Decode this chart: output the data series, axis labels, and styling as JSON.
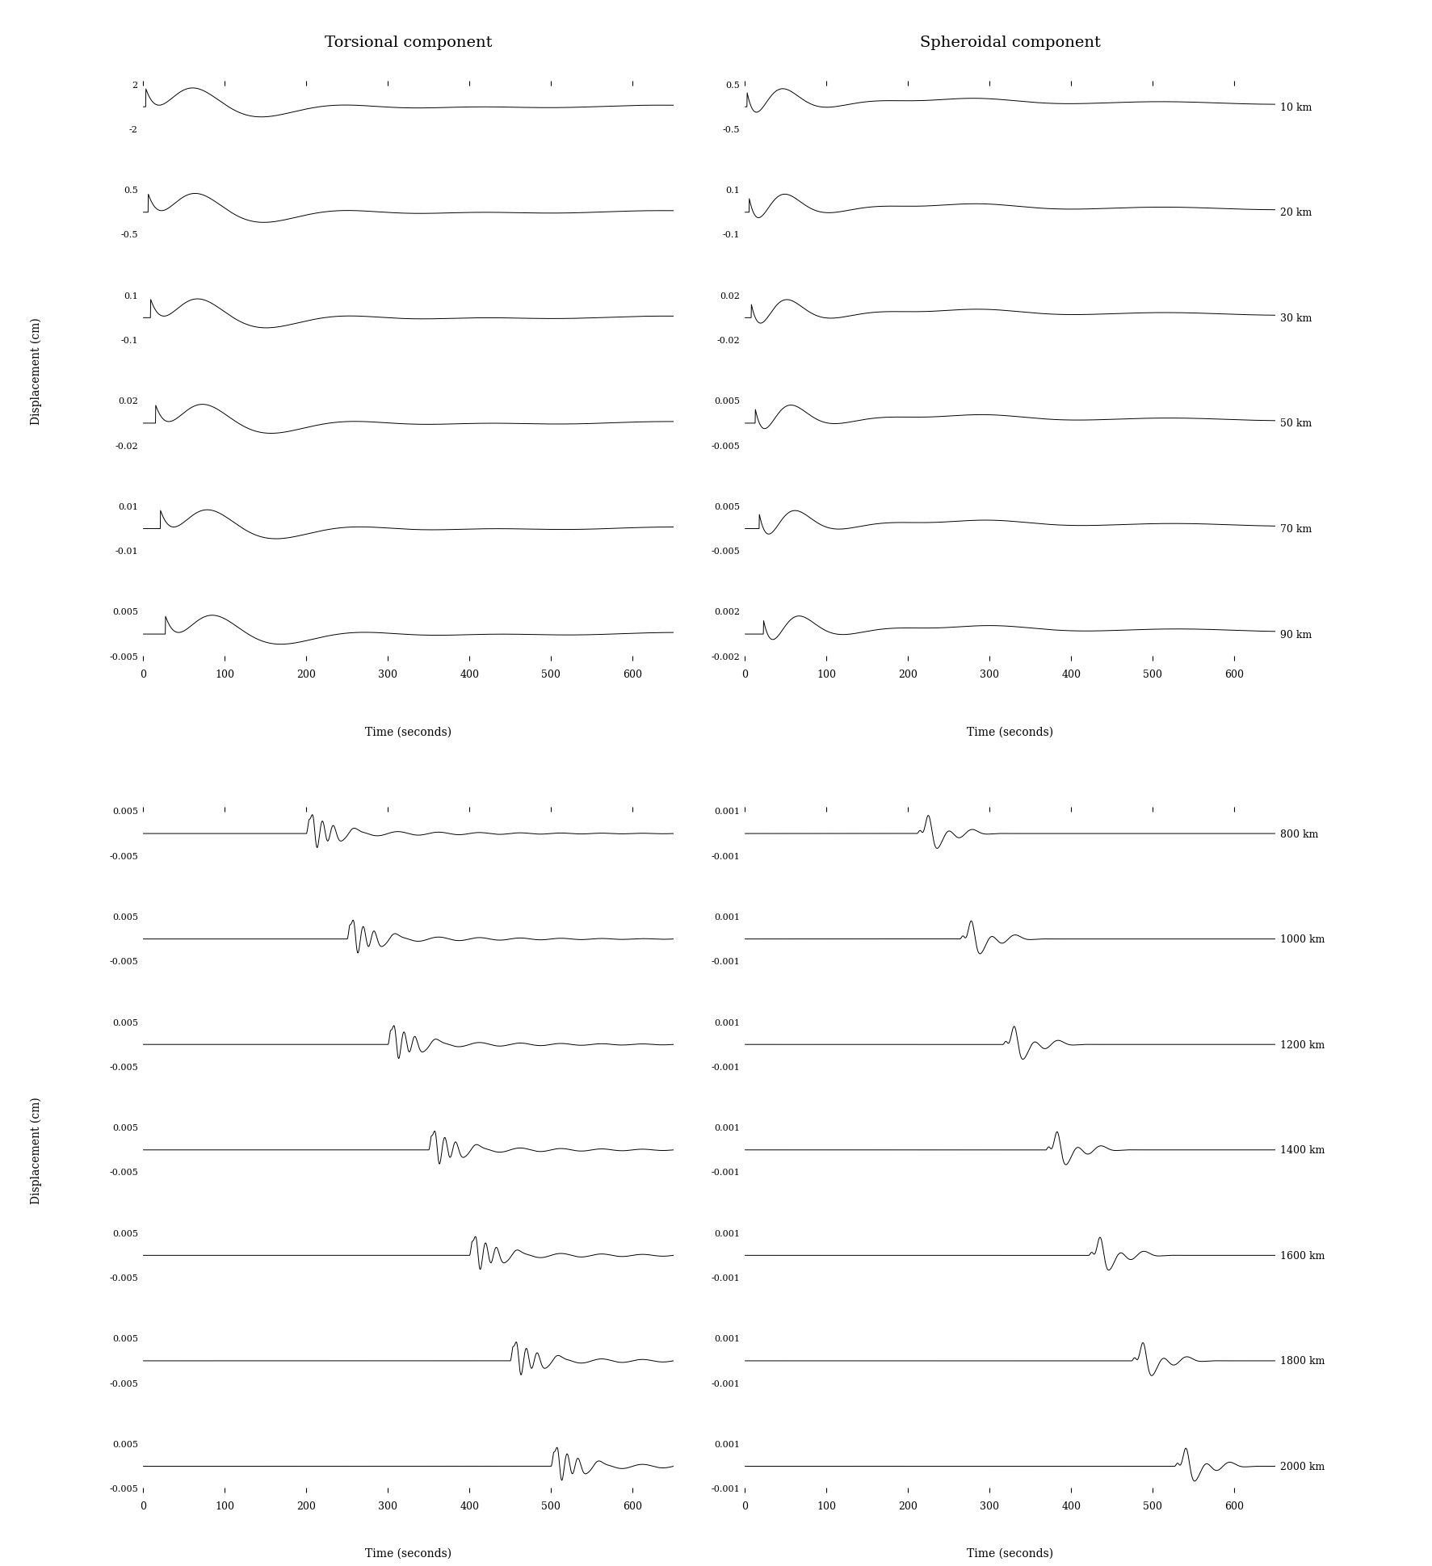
{
  "title_torsional": "Torsional component",
  "title_spheroidal": "Spheroidal component",
  "ylabel": "Displacement (cm)",
  "xlabel": "Time (seconds)",
  "time_max": 650,
  "panel1_distances": [
    10,
    20,
    30,
    50,
    70,
    90
  ],
  "panel1_torsional_amplitudes": [
    2.0,
    0.5,
    0.1,
    0.02,
    0.01,
    0.005
  ],
  "panel1_spheroidal_amplitudes": [
    0.5,
    0.1,
    0.02,
    0.005,
    0.005,
    0.002
  ],
  "panel2_distances": [
    800,
    1000,
    1200,
    1400,
    1600,
    1800,
    2000
  ],
  "panel2_torsional_amplitudes": [
    0.005,
    0.005,
    0.005,
    0.005,
    0.005,
    0.005,
    0.005
  ],
  "panel2_spheroidal_amplitudes": [
    0.001,
    0.001,
    0.001,
    0.001,
    0.001,
    0.001,
    0.001
  ],
  "xticks": [
    0,
    100,
    200,
    300,
    400,
    500,
    600
  ],
  "background_color": "#ffffff",
  "line_color": "#000000",
  "font_family": "serif",
  "title_fontsize": 14,
  "label_fontsize": 10,
  "tick_label_fontsize": 9,
  "amp_label_fontsize": 8
}
